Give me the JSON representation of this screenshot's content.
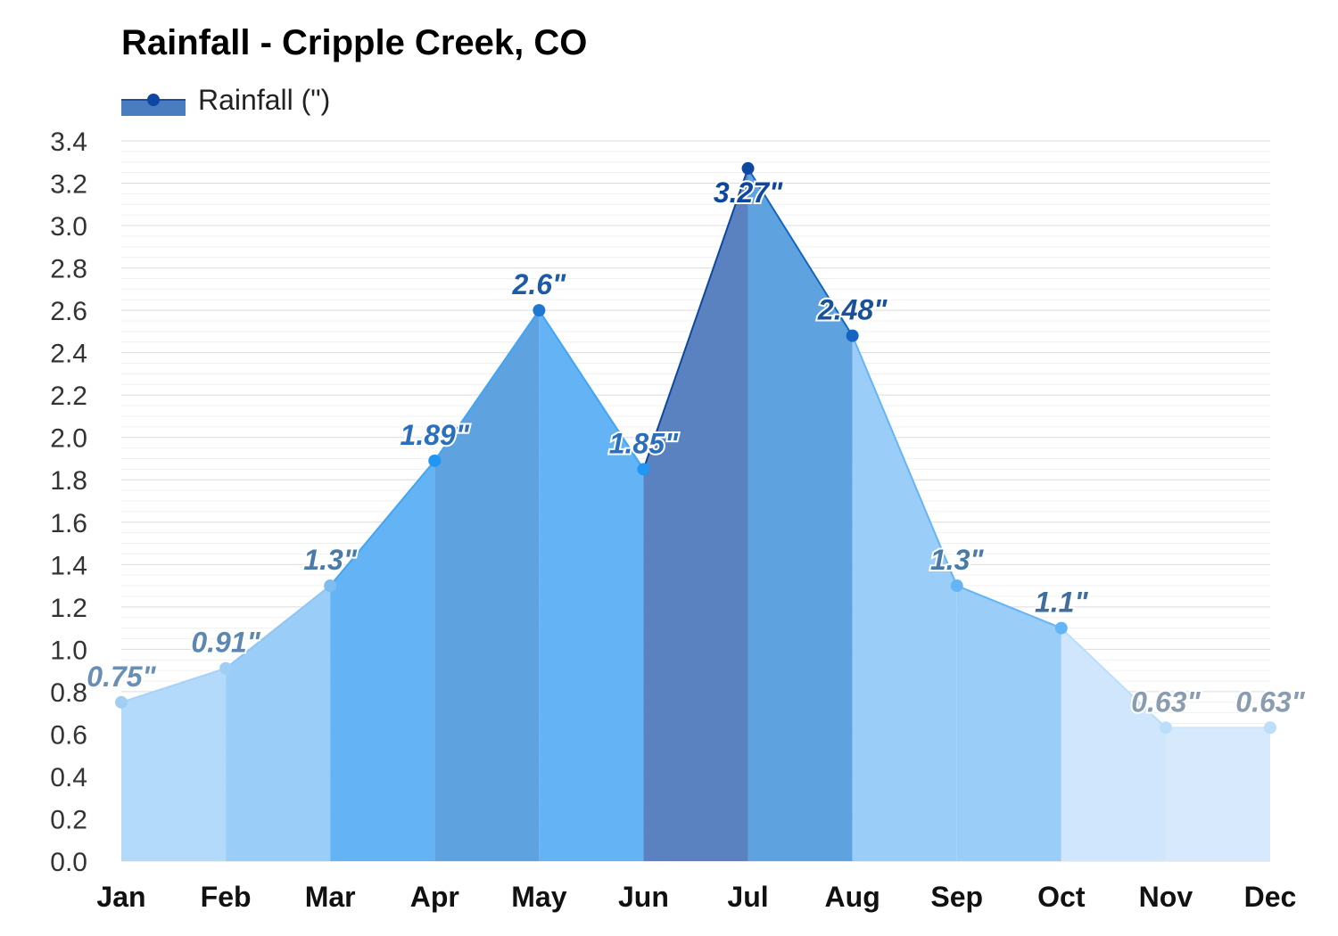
{
  "chart_data": {
    "type": "area",
    "title": "Rainfall - Cripple Creek, CO",
    "legend": {
      "label": "Rainfall (\")",
      "position": "top-left"
    },
    "categories": [
      "Jan",
      "Feb",
      "Mar",
      "Apr",
      "May",
      "Jun",
      "Jul",
      "Aug",
      "Sep",
      "Oct",
      "Nov",
      "Dec"
    ],
    "series": [
      {
        "name": "Rainfall (\")",
        "values": [
          0.75,
          0.91,
          1.3,
          1.89,
          2.6,
          1.85,
          3.27,
          2.48,
          1.3,
          1.1,
          0.63,
          0.63
        ],
        "labels": [
          "0.75\"",
          "0.91\"",
          "1.3\"",
          "1.89\"",
          "2.6\"",
          "1.85\"",
          "3.27\"",
          "2.48\"",
          "1.3\"",
          "1.1\"",
          "0.63\"",
          "0.63\""
        ]
      }
    ],
    "ylim": [
      0,
      3.4
    ],
    "yticks": [
      "0.0",
      "0.2",
      "0.4",
      "0.6",
      "0.8",
      "1.0",
      "1.2",
      "1.4",
      "1.6",
      "1.8",
      "2.0",
      "2.2",
      "2.4",
      "2.6",
      "2.8",
      "3.0",
      "3.2",
      "3.4"
    ],
    "grid": true,
    "xlabel": "",
    "ylabel": ""
  },
  "colors": {
    "segment_fills": [
      "#b3d9fb",
      "#9bcdf9",
      "#63b3f5",
      "#5ea2e0",
      "#63b3f5",
      "#5b82c0",
      "#5ea2e0",
      "#9bcdf9",
      "#9bcdf9",
      "#cfe6fc",
      "#d6e9fd"
    ],
    "point_fills": [
      "#9fcff5",
      "#9fcff5",
      "#7dbdf0",
      "#2196f3",
      "#1e78d2",
      "#2196f3",
      "#0d47a1",
      "#1565c0",
      "#64b5f6",
      "#64b5f6",
      "#bbdefb",
      "#bbdefb"
    ],
    "label_colors": [
      "#6a8fb5",
      "#5d87b0",
      "#4a7aa8",
      "#2a6fbd",
      "#1e5aa8",
      "#2a6fbd",
      "#0d47a1",
      "#1a5299",
      "#4a7aa8",
      "#3f6e9e",
      "#8a9cb0",
      "#8a9cb0"
    ],
    "line_colors": [
      "#a8d2f7",
      "#8ec5f5",
      "#42a5f5",
      "#42a5f5",
      "#42a5f5",
      "#0d47a1",
      "#1565c0",
      "#64b5f6",
      "#64b5f6",
      "#bbdefb",
      "#cfe6fc"
    ]
  }
}
